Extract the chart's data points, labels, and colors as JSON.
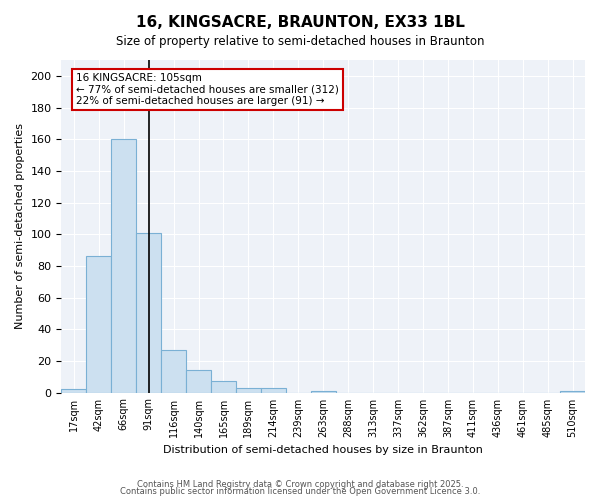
{
  "title": "16, KINGSACRE, BRAUNTON, EX33 1BL",
  "subtitle": "Size of property relative to semi-detached houses in Braunton",
  "xlabel": "Distribution of semi-detached houses by size in Braunton",
  "ylabel_clean": "Number of semi-detached properties",
  "bins": [
    "17sqm",
    "42sqm",
    "66sqm",
    "91sqm",
    "116sqm",
    "140sqm",
    "165sqm",
    "189sqm",
    "214sqm",
    "239sqm",
    "263sqm",
    "288sqm",
    "313sqm",
    "337sqm",
    "362sqm",
    "387sqm",
    "411sqm",
    "436sqm",
    "461sqm",
    "485sqm",
    "510sqm"
  ],
  "values": [
    2,
    86,
    160,
    101,
    27,
    14,
    7,
    3,
    3,
    0,
    1,
    0,
    0,
    0,
    0,
    0,
    0,
    0,
    0,
    0,
    1
  ],
  "property_bin_index": 3,
  "annotation_title": "16 KINGSACRE: 105sqm",
  "annotation_line1": "← 77% of semi-detached houses are smaller (312)",
  "annotation_line2": "22% of semi-detached houses are larger (91) →",
  "bar_color": "#cce0f0",
  "bar_edge_color": "#7ab0d4",
  "highlight_line_color": "#000000",
  "annotation_box_color": "#cc0000",
  "footer1": "Contains HM Land Registry data © Crown copyright and database right 2025.",
  "footer2": "Contains public sector information licensed under the Open Government Licence 3.0.",
  "ylim": [
    0,
    210
  ],
  "yticks": [
    0,
    20,
    40,
    60,
    80,
    100,
    120,
    140,
    160,
    180,
    200
  ]
}
